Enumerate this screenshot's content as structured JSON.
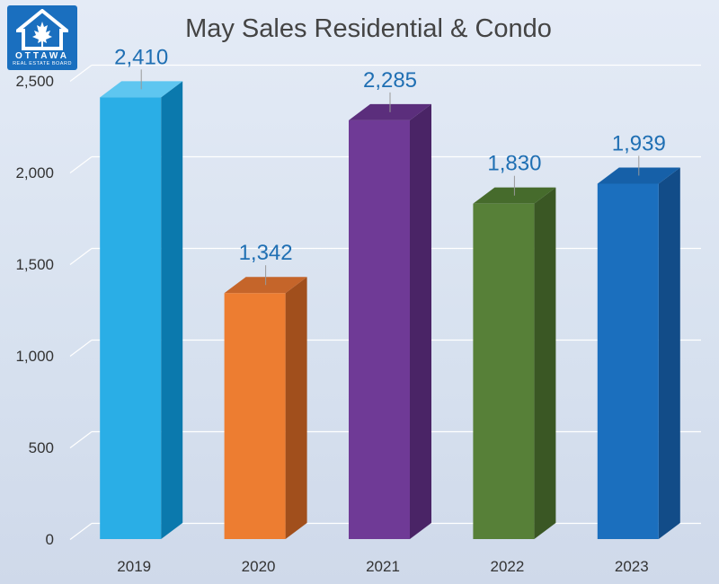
{
  "logo": {
    "name": "OTTAWA",
    "subtitle": "REAL ESTATE BOARD"
  },
  "chart_data": {
    "type": "bar",
    "title": "May Sales Residential & Condo",
    "categories": [
      "2019",
      "2020",
      "2021",
      "2022",
      "2023"
    ],
    "values": [
      2410,
      1342,
      2285,
      1830,
      1939
    ],
    "value_labels": [
      "2,410",
      "1,342",
      "2,285",
      "1,830",
      "1,939"
    ],
    "yticks": [
      0,
      500,
      1000,
      1500,
      2000,
      2500
    ],
    "ytick_labels": [
      "0",
      "500",
      "1,000",
      "1,500",
      "2,000",
      "2,500"
    ],
    "ylim": [
      0,
      2500
    ],
    "grid": true,
    "bar_colors": [
      {
        "front": "#2aaee6",
        "side": "#0b79ad",
        "top": "#5ec6f0"
      },
      {
        "front": "#ed7d31",
        "side": "#a14f1c",
        "top": "#c5652a"
      },
      {
        "front": "#6f3a96",
        "side": "#4a2466",
        "top": "#5b2e7c"
      },
      {
        "front": "#578038",
        "side": "#3a5724",
        "top": "#466b2c"
      },
      {
        "front": "#1b6fbe",
        "side": "#124c88",
        "top": "#1660a8"
      }
    ],
    "label_color": "#1f6fb3"
  }
}
